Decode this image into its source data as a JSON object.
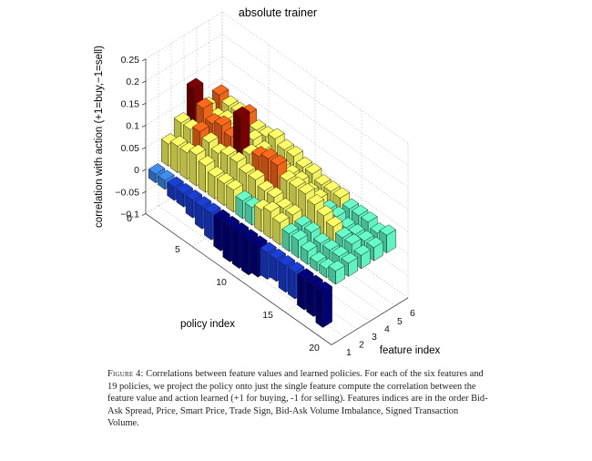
{
  "chart_data": {
    "type": "bar3d",
    "title": "absolute trainer",
    "zlabel": "correlation with action (+1=buy,−1=sell)",
    "xlabel": "policy index",
    "ylabel": "feature index",
    "zticks": [
      "0.25",
      "0.2",
      "0.15",
      "0.1",
      "0.05",
      "0",
      "−0.05",
      "−0.1"
    ],
    "zlim": [
      -0.1,
      0.25
    ],
    "zero_label": "0",
    "policy_ticks": [
      "5",
      "10",
      "15",
      "20"
    ],
    "feature_ticks": [
      "1",
      "2",
      "3",
      "4",
      "5",
      "6"
    ],
    "grid": true,
    "colormap": [
      "#00007f",
      "#1a3fd9",
      "#3f8df2",
      "#66ffcc",
      "#ffff66",
      "#ff6a1a",
      "#7f0000"
    ],
    "series": [
      {
        "name": "",
        "feature": 1,
        "values": [
          -0.02,
          -0.02,
          -0.03,
          -0.03,
          -0.04,
          -0.05,
          -0.06,
          -0.07,
          -0.08,
          -0.08,
          -0.08,
          -0.07,
          -0.06,
          -0.05,
          -0.06,
          -0.06,
          -0.07,
          -0.07,
          -0.08
        ]
      },
      {
        "name": "",
        "feature": 2,
        "values": [
          0.05,
          0.06,
          0.06,
          0.07,
          0.06,
          0.05,
          0.05,
          0.05,
          0.04,
          0.04,
          0.05,
          0.06,
          0.05,
          0.04,
          0.04,
          0.03,
          0.02,
          0.02,
          0.03
        ]
      },
      {
        "name": "",
        "feature": 3,
        "values": [
          0.08,
          0.08,
          0.09,
          0.08,
          0.07,
          0.08,
          0.08,
          0.07,
          0.07,
          0.06,
          0.06,
          0.05,
          0.05,
          0.04,
          0.04,
          0.03,
          0.03,
          0.03,
          0.03
        ]
      },
      {
        "name": "",
        "feature": 4,
        "values": [
          0.14,
          0.11,
          0.09,
          0.1,
          0.09,
          0.15,
          0.08,
          0.09,
          0.1,
          0.1,
          0.08,
          0.08,
          0.08,
          0.07,
          0.06,
          0.05,
          0.04,
          0.04,
          0.03
        ]
      },
      {
        "name": "",
        "feature": 5,
        "values": [
          0.08,
          0.07,
          0.08,
          0.07,
          0.06,
          0.08,
          0.07,
          0.05,
          0.06,
          0.06,
          0.06,
          0.05,
          0.05,
          0.04,
          0.04,
          0.03,
          0.03,
          0.03,
          0.03
        ]
      },
      {
        "name": "",
        "feature": 6,
        "values": [
          0.09,
          0.08,
          0.08,
          0.09,
          0.07,
          0.07,
          0.08,
          0.07,
          0.07,
          0.06,
          0.06,
          0.05,
          0.05,
          0.05,
          0.04,
          0.04,
          0.04,
          0.03,
          0.04
        ]
      }
    ]
  },
  "caption": {
    "label": "Figure 4:",
    "text": "Correlations between feature values and learned policies. For each of the six features and 19 policies, we project the policy onto just the single feature compute the correlation between the feature value and action learned (+1 for buying, -1 for selling). Features indices are in the order Bid-Ask Spread, Price, Smart Price, Trade Sign, Bid-Ask Volume Imbalance, Signed Transaction Volume."
  }
}
